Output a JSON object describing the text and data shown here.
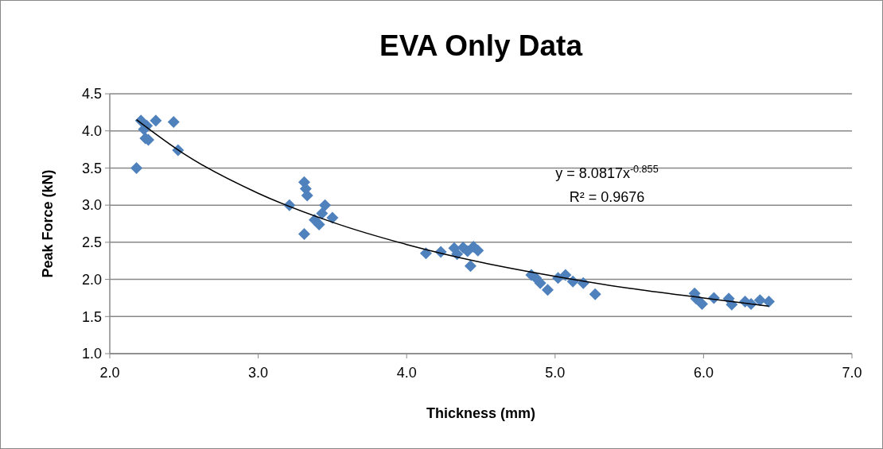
{
  "chart_data": {
    "type": "scatter",
    "title": "EVA Only Data",
    "xlabel": "Thickness (mm)",
    "ylabel": "Peak Force (kN)",
    "xlim": [
      2.0,
      7.0
    ],
    "xticks": [
      {
        "value": 2,
        "label": "2.0"
      },
      {
        "value": 3,
        "label": "3.0"
      },
      {
        "value": 4,
        "label": "4.0"
      },
      {
        "value": 5,
        "label": "5.0"
      },
      {
        "value": 6,
        "label": "6.0"
      },
      {
        "value": 7,
        "label": "7.0"
      }
    ],
    "ylim": [
      1.0,
      4.5
    ],
    "yticks": [
      {
        "value": 1,
        "label": "1.0"
      },
      1.5,
      {
        "value": 2,
        "label": "2.0"
      },
      2.5,
      {
        "value": 3,
        "label": "3.0"
      },
      3.5,
      {
        "value": 4,
        "label": "4.0"
      },
      4.5
    ],
    "grid": "y",
    "series": [
      {
        "color": "#4f81bd",
        "marker": "diamond",
        "x": [
          2.18,
          2.21,
          2.23,
          2.24,
          2.26,
          2.25,
          2.31,
          2.43,
          2.46,
          3.21,
          3.31,
          3.32,
          3.33,
          3.31,
          3.38,
          3.41,
          3.43,
          3.45,
          3.5,
          4.13,
          4.23,
          4.32,
          4.34,
          4.38,
          4.41,
          4.43,
          4.45,
          4.48,
          4.84,
          4.87,
          4.9,
          4.95,
          5.02,
          5.07,
          5.12,
          5.19,
          5.27,
          5.94,
          5.95,
          5.99,
          6.07,
          6.17,
          6.19,
          6.28,
          6.32,
          6.38,
          6.44
        ],
        "values": [
          3.5,
          4.14,
          4.02,
          3.9,
          3.88,
          4.07,
          4.14,
          4.12,
          3.74,
          3.0,
          3.31,
          3.22,
          3.13,
          2.61,
          2.8,
          2.74,
          2.89,
          3.0,
          2.83,
          2.35,
          2.37,
          2.42,
          2.34,
          2.43,
          2.38,
          2.18,
          2.44,
          2.39,
          2.06,
          2.02,
          1.95,
          1.86,
          2.02,
          2.06,
          1.97,
          1.95,
          1.8,
          1.81,
          1.74,
          1.67,
          1.75,
          1.74,
          1.66,
          1.7,
          1.67,
          1.72,
          1.7
        ]
      },
      {
        "type": "line",
        "color": "#000000",
        "marker": "none",
        "x": [
          2.18,
          2.5,
          3,
          3.5,
          4,
          4.5,
          5,
          5.5,
          6,
          6.44
        ],
        "values": [
          4.15,
          3.69,
          3.16,
          2.77,
          2.47,
          2.23,
          2.04,
          1.88,
          1.75,
          1.64
        ]
      }
    ],
    "annotations": [
      "y = 8.0817x$^{-0.855}$",
      "R² = 0.9676"
    ]
  }
}
